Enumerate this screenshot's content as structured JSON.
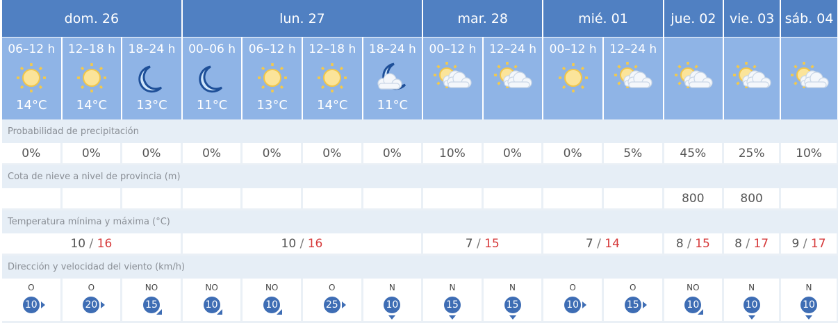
{
  "days": [
    {
      "label": "dom. 26",
      "periods": 3,
      "min": "10",
      "max": "16"
    },
    {
      "label": "lun. 27",
      "periods": 4,
      "min": "10",
      "max": "16"
    },
    {
      "label": "mar. 28",
      "periods": 2,
      "min": "7",
      "max": "15"
    },
    {
      "label": "mié. 01",
      "periods": 2,
      "min": "7",
      "max": "14"
    },
    {
      "label": "jue. 02",
      "periods": 1,
      "min": "8",
      "max": "15"
    },
    {
      "label": "vie. 03",
      "periods": 1,
      "min": "8",
      "max": "17"
    },
    {
      "label": "sáb. 04",
      "periods": 1,
      "min": "9",
      "max": "17"
    }
  ],
  "periods": [
    {
      "time": "06–12 h",
      "icon": "sun-icon",
      "temp": "14°C",
      "precip": "0%",
      "snow": "",
      "wind_dir": "O",
      "wind_speed": "10"
    },
    {
      "time": "12–18 h",
      "icon": "sun-icon",
      "temp": "14°C",
      "precip": "0%",
      "snow": "",
      "wind_dir": "O",
      "wind_speed": "20"
    },
    {
      "time": "18–24 h",
      "icon": "moon-icon",
      "temp": "13°C",
      "precip": "0%",
      "snow": "",
      "wind_dir": "NO",
      "wind_speed": "15"
    },
    {
      "time": "00–06 h",
      "icon": "moon-icon",
      "temp": "11°C",
      "precip": "0%",
      "snow": "",
      "wind_dir": "NO",
      "wind_speed": "10"
    },
    {
      "time": "06–12 h",
      "icon": "sun-icon",
      "temp": "13°C",
      "precip": "0%",
      "snow": "",
      "wind_dir": "NO",
      "wind_speed": "10"
    },
    {
      "time": "12–18 h",
      "icon": "sun-icon",
      "temp": "14°C",
      "precip": "0%",
      "snow": "",
      "wind_dir": "O",
      "wind_speed": "25"
    },
    {
      "time": "18–24 h",
      "icon": "moon-cloud-icon",
      "temp": "11°C",
      "precip": "0%",
      "snow": "",
      "wind_dir": "N",
      "wind_speed": "10"
    },
    {
      "time": "00–12 h",
      "icon": "sun-cloud-icon",
      "temp": "",
      "precip": "10%",
      "snow": "",
      "wind_dir": "N",
      "wind_speed": "15"
    },
    {
      "time": "12–24 h",
      "icon": "sun-cloud-icon",
      "temp": "",
      "precip": "0%",
      "snow": "",
      "wind_dir": "N",
      "wind_speed": "15"
    },
    {
      "time": "00–12 h",
      "icon": "sun-icon",
      "temp": "",
      "precip": "0%",
      "snow": "",
      "wind_dir": "O",
      "wind_speed": "10"
    },
    {
      "time": "12–24 h",
      "icon": "sun-cloud-icon",
      "temp": "",
      "precip": "5%",
      "snow": "",
      "wind_dir": "O",
      "wind_speed": "15"
    },
    {
      "time": "",
      "icon": "sun-cloud-icon",
      "temp": "",
      "precip": "45%",
      "snow": "800",
      "wind_dir": "NO",
      "wind_speed": "10"
    },
    {
      "time": "",
      "icon": "sun-cloud-icon",
      "temp": "",
      "precip": "25%",
      "snow": "800",
      "wind_dir": "N",
      "wind_speed": "10"
    },
    {
      "time": "",
      "icon": "sun-cloud-icon",
      "temp": "",
      "precip": "10%",
      "snow": "",
      "wind_dir": "N",
      "wind_speed": "10"
    }
  ],
  "labels": {
    "precip": "Probabilidad de precipitación",
    "snow": "Cota de nieve a nivel de provincia (m)",
    "temp": "Temperatura mínima y máxima (°C)",
    "wind": "Dirección y velocidad del viento (km/h)"
  },
  "temp_separator": " / ",
  "colors": {
    "header": "#5080c2",
    "periods": "#8fb4e6",
    "max_temp": "#d6393a",
    "wind_badge": "#3e6db4"
  }
}
